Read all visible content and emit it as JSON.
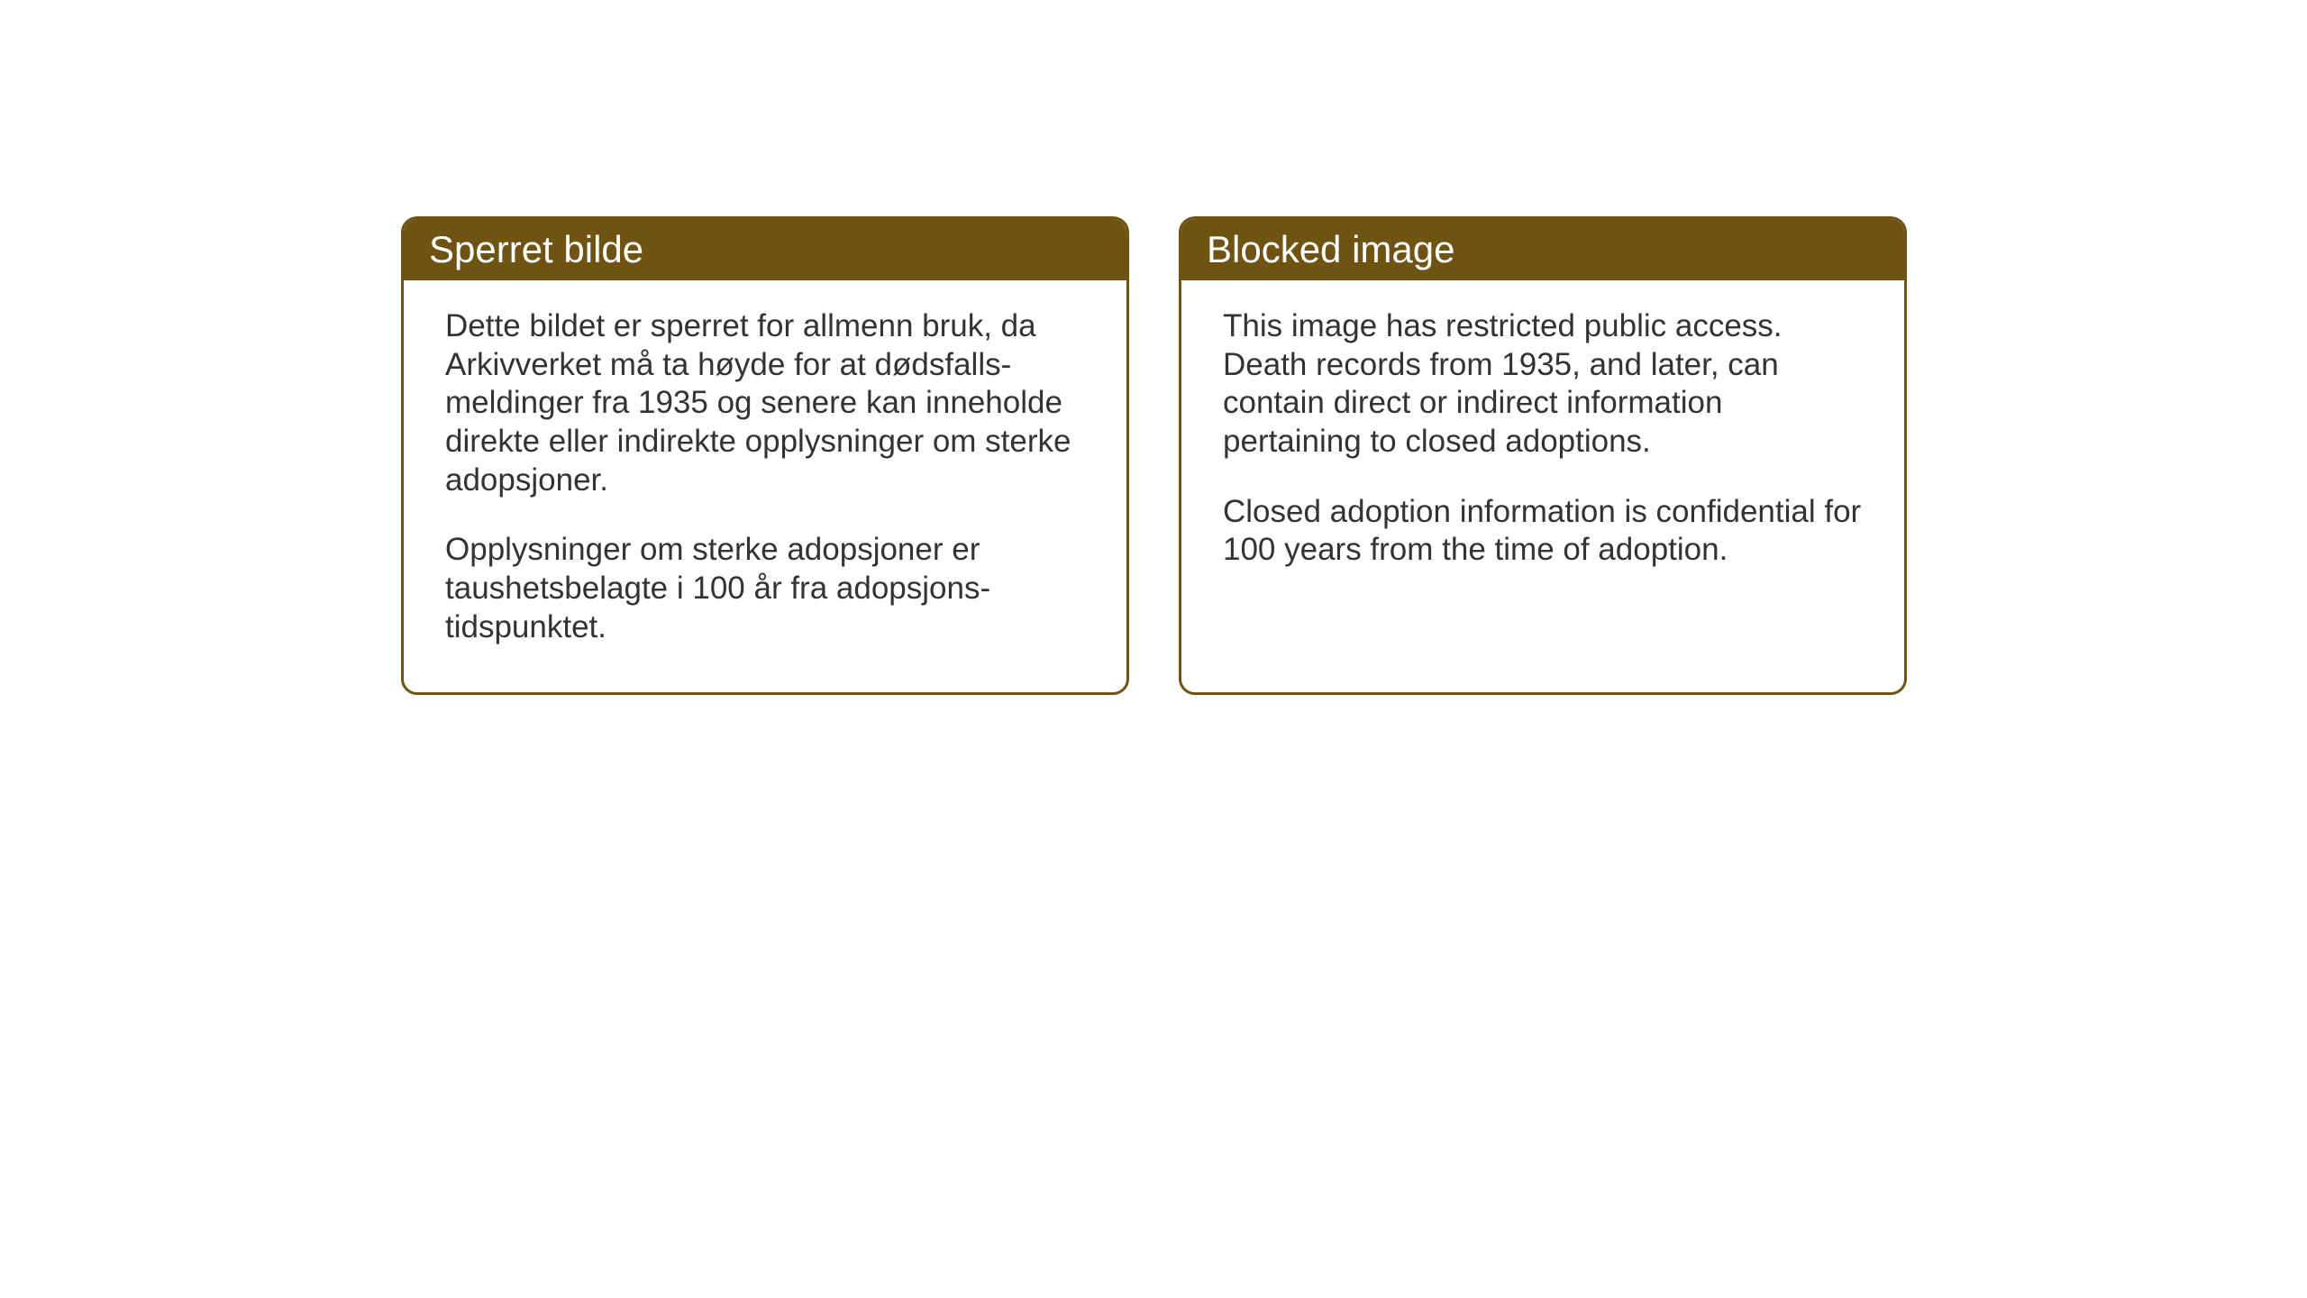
{
  "cards": {
    "norwegian": {
      "title": "Sperret bilde",
      "paragraph1": "Dette bildet er sperret for allmenn bruk, da Arkivverket må ta høyde for at dødsfalls-meldinger fra 1935 og senere kan inneholde direkte eller indirekte opplysninger om sterke adopsjoner.",
      "paragraph2": "Opplysninger om sterke adopsjoner er taushetsbelagte i 100 år fra adopsjons-tidspunktet."
    },
    "english": {
      "title": "Blocked image",
      "paragraph1": "This image has restricted public access. Death records from 1935, and later, can contain direct or indirect information pertaining to closed adoptions.",
      "paragraph2": "Closed adoption information is confidential for 100 years from the time of adoption."
    }
  },
  "styling": {
    "header_background_color": "#6e5313",
    "header_text_color": "#ffffff",
    "border_color": "#6e5313",
    "body_text_color": "#333333",
    "card_background_color": "#ffffff",
    "page_background_color": "#ffffff",
    "header_fontsize": 42,
    "body_fontsize": 35,
    "border_radius": 18,
    "border_width": 3
  }
}
